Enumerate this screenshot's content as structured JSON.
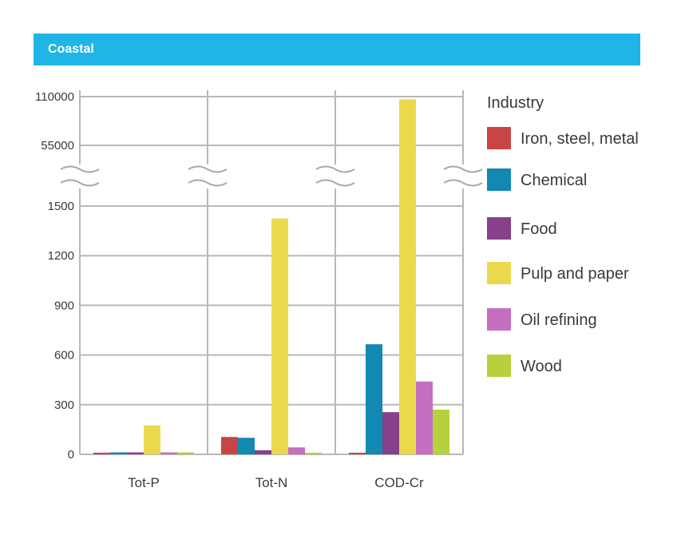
{
  "banner": {
    "title": "Coastal"
  },
  "chart_data": {
    "type": "bar",
    "title": "Coastal",
    "categories": [
      "Tot-P",
      "Tot-N",
      "COD-Cr"
    ],
    "y_ticks": [
      "0",
      "300",
      "600",
      "900",
      "1200",
      "1500",
      "55000",
      "110000"
    ],
    "y_axis_break": {
      "from": 1500,
      "to": 55000
    },
    "legend_title": "Industry",
    "legend_placement": "right",
    "grid": true,
    "series": [
      {
        "name": "Iron, steel, metal",
        "color": "#c94545",
        "values": [
          10,
          105,
          10
        ]
      },
      {
        "name": "Chemical",
        "color": "#1288b2",
        "values": [
          12,
          100,
          665
        ]
      },
      {
        "name": "Food",
        "color": "#86418a",
        "values": [
          12,
          25,
          255
        ]
      },
      {
        "name": "Pulp and paper",
        "color": "#ead94d",
        "values": [
          175,
          1425,
          107000
        ]
      },
      {
        "name": "Oil refining",
        "color": "#c46fc0",
        "values": [
          12,
          42,
          440
        ]
      },
      {
        "name": "Wood",
        "color": "#b6d13c",
        "values": [
          12,
          10,
          270
        ]
      }
    ]
  }
}
